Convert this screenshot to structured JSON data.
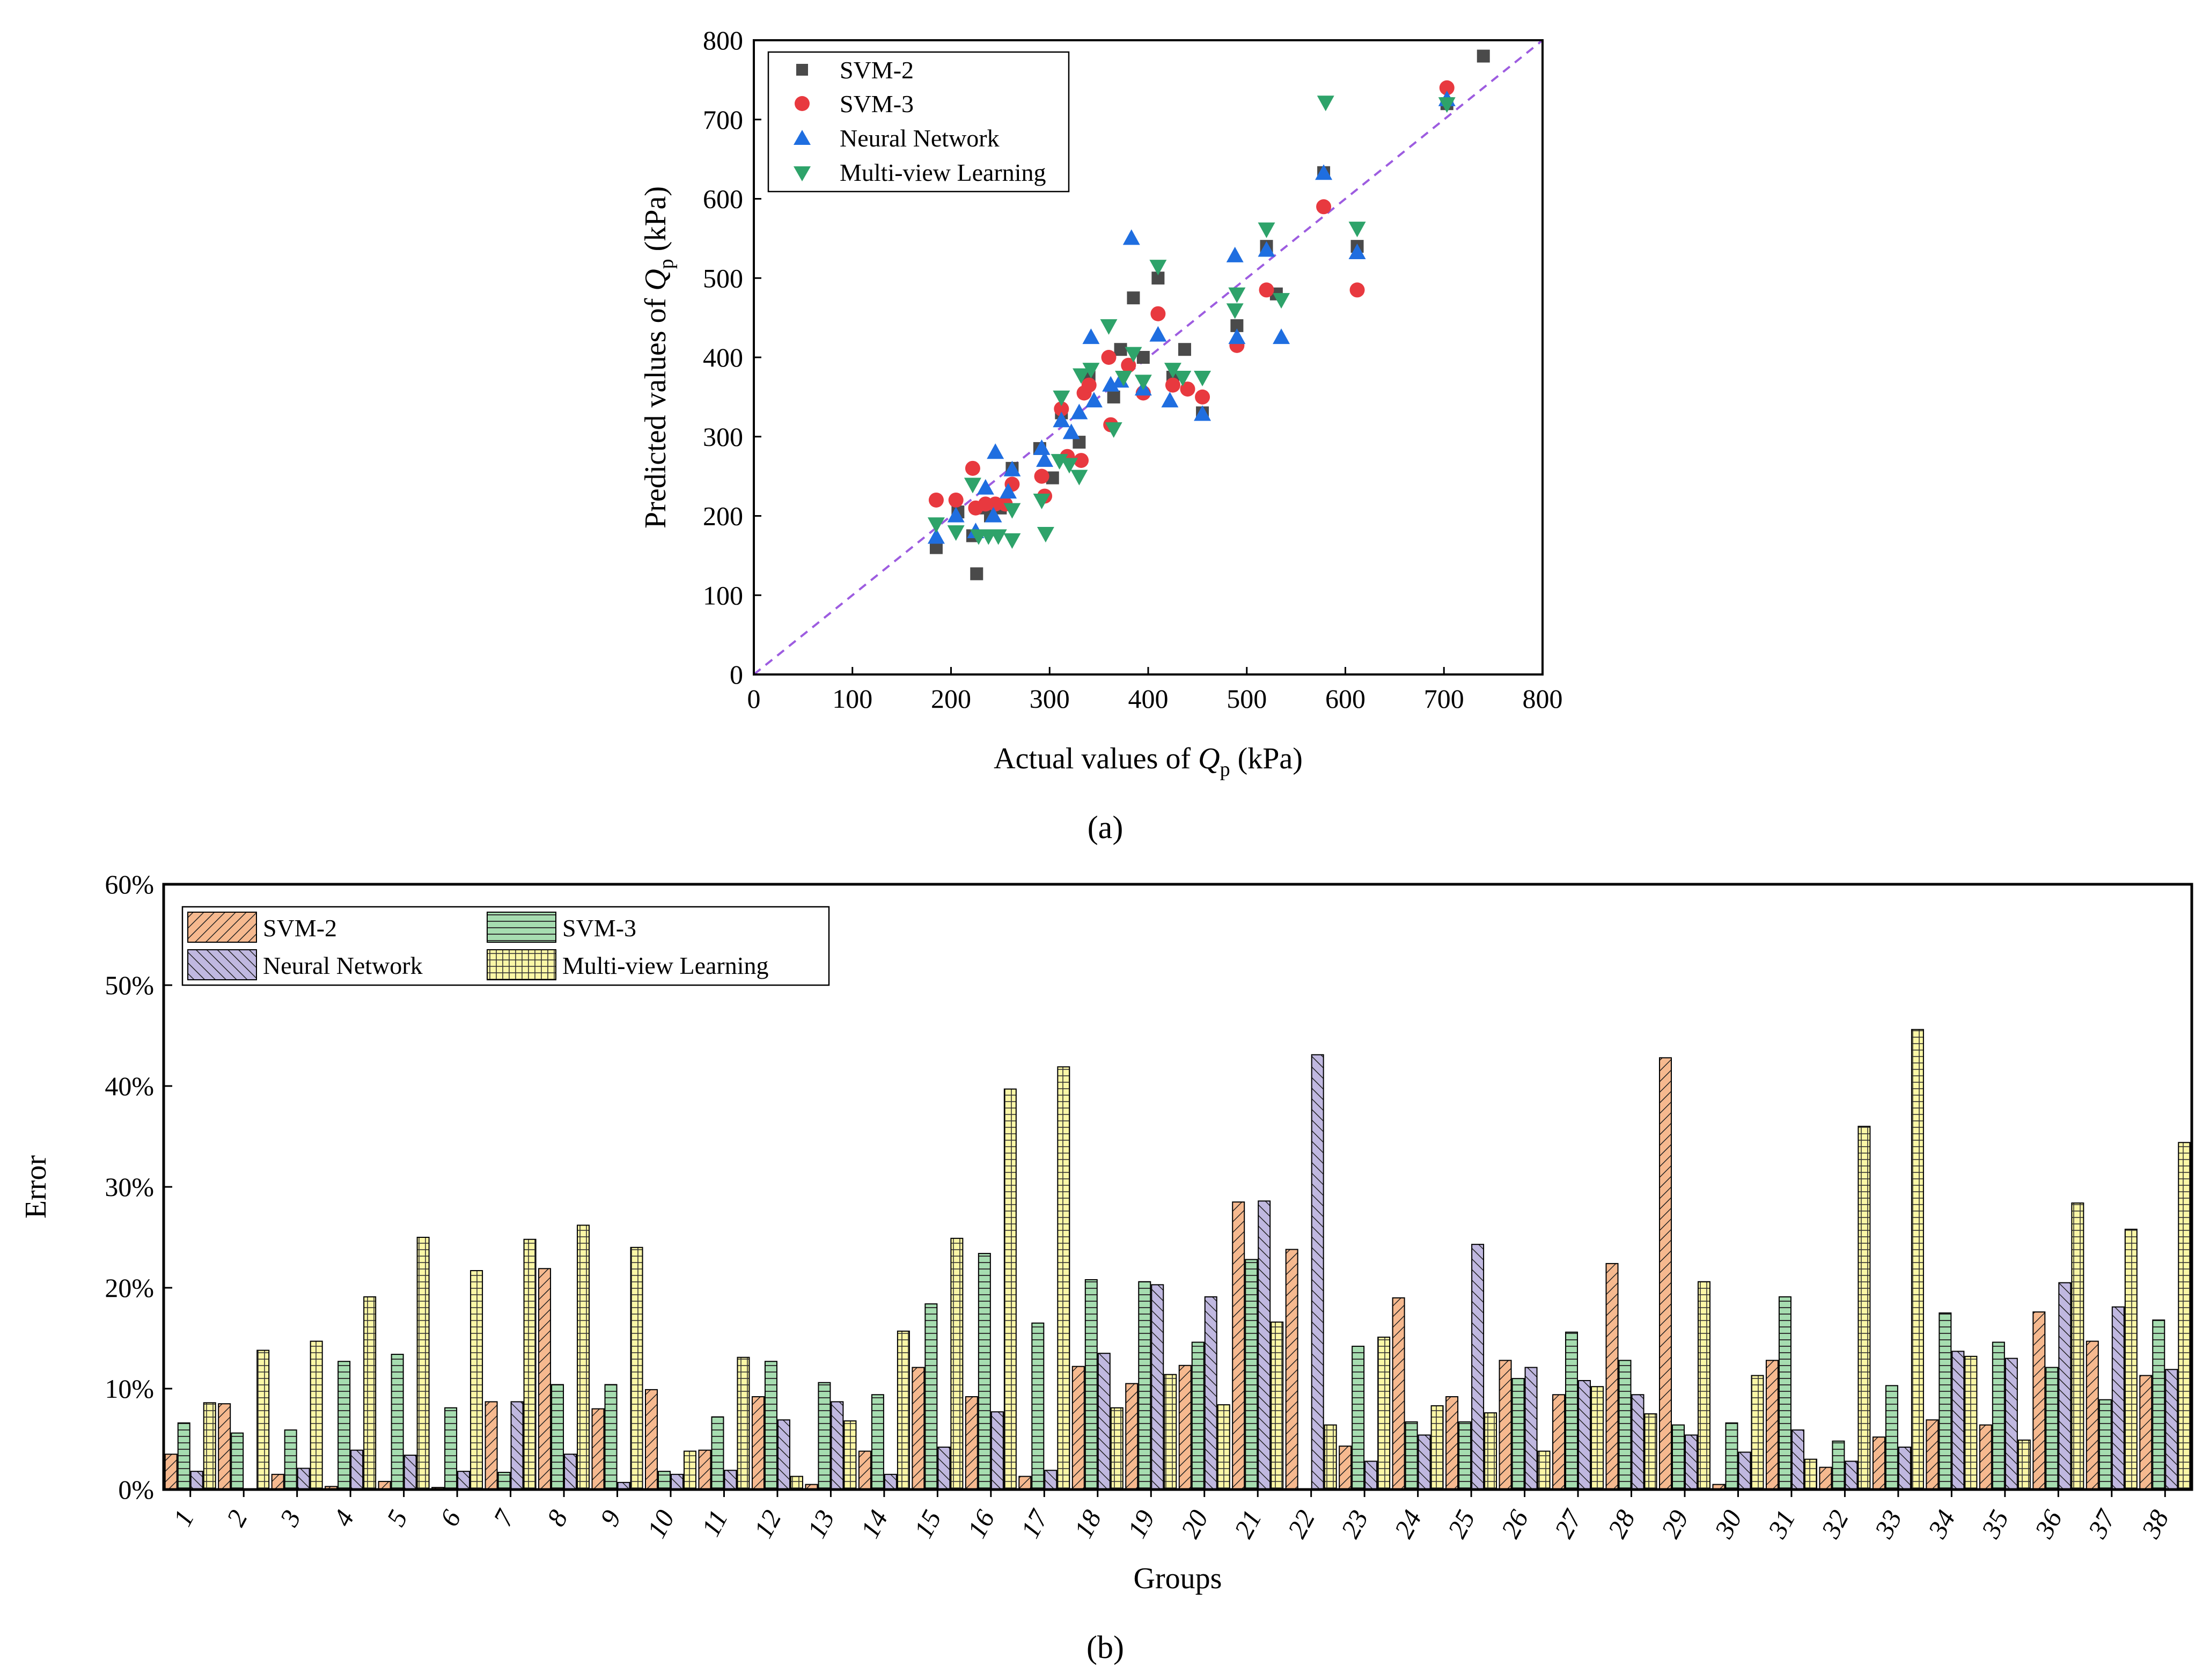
{
  "figure": {
    "panel_a_label": "(a)",
    "panel_b_label": "(b)"
  },
  "colors": {
    "svm2_marker": "#4a4a4a",
    "svm3_marker": "#e8393f",
    "nn_marker": "#1f6ee0",
    "mvl_marker": "#2ea36a",
    "diagonal": "#9d5ce0",
    "svm2_bar": "#f6b98f",
    "svm3_bar": "#a6ddb0",
    "nn_bar": "#c0b8e0",
    "mvl_bar": "#fbf7a6"
  },
  "chart_data": [
    {
      "type": "scatter",
      "title": "",
      "xlabel_prefix": "Actual values of ",
      "ylabel_prefix": "Predicted values of ",
      "variable": "Q",
      "variable_sub": "p",
      "unit": " (kPa)",
      "xlim": [
        0,
        800
      ],
      "ylim": [
        0,
        800
      ],
      "xticks": [
        0,
        100,
        200,
        300,
        400,
        500,
        600,
        700,
        800
      ],
      "yticks": [
        0,
        100,
        200,
        300,
        400,
        500,
        600,
        700,
        800
      ],
      "reference_line": "y = x",
      "legend_position": "top-left",
      "series": [
        {
          "name": "SVM-2",
          "marker": "square",
          "points": [
            [
              185,
              160
            ],
            [
              207,
              205
            ],
            [
              222,
              175
            ],
            [
              226,
              127
            ],
            [
              232,
              210
            ],
            [
              240,
              200
            ],
            [
              250,
              210
            ],
            [
              262,
              260
            ],
            [
              290,
              285
            ],
            [
              303,
              248
            ],
            [
              312,
              330
            ],
            [
              330,
              293
            ],
            [
              340,
              375
            ],
            [
              365,
              350
            ],
            [
              372,
              410
            ],
            [
              385,
              475
            ],
            [
              395,
              400
            ],
            [
              410,
              500
            ],
            [
              425,
              375
            ],
            [
              437,
              410
            ],
            [
              455,
              330
            ],
            [
              490,
              440
            ],
            [
              520,
              540
            ],
            [
              530,
              480
            ],
            [
              578,
              633
            ],
            [
              612,
              540
            ],
            [
              703,
              720
            ],
            [
              740,
              780
            ]
          ]
        },
        {
          "name": "SVM-3",
          "marker": "circle",
          "points": [
            [
              185,
              220
            ],
            [
              205,
              220
            ],
            [
              222,
              260
            ],
            [
              225,
              210
            ],
            [
              235,
              215
            ],
            [
              245,
              215
            ],
            [
              255,
              215
            ],
            [
              262,
              240
            ],
            [
              292,
              250
            ],
            [
              295,
              225
            ],
            [
              312,
              335
            ],
            [
              318,
              275
            ],
            [
              332,
              270
            ],
            [
              335,
              355
            ],
            [
              340,
              365
            ],
            [
              360,
              400
            ],
            [
              362,
              315
            ],
            [
              380,
              390
            ],
            [
              395,
              355
            ],
            [
              410,
              455
            ],
            [
              425,
              365
            ],
            [
              440,
              360
            ],
            [
              455,
              350
            ],
            [
              490,
              415
            ],
            [
              520,
              485
            ],
            [
              578,
              590
            ],
            [
              612,
              485
            ],
            [
              703,
              740
            ]
          ]
        },
        {
          "name": "Neural Network",
          "marker": "triangle-up",
          "points": [
            [
              185,
              173
            ],
            [
              205,
              200
            ],
            [
              225,
              180
            ],
            [
              235,
              235
            ],
            [
              243,
              200
            ],
            [
              245,
              280
            ],
            [
              258,
              230
            ],
            [
              262,
              258
            ],
            [
              292,
              285
            ],
            [
              295,
              270
            ],
            [
              312,
              320
            ],
            [
              322,
              305
            ],
            [
              330,
              330
            ],
            [
              342,
              425
            ],
            [
              345,
              345
            ],
            [
              362,
              365
            ],
            [
              372,
              370
            ],
            [
              383,
              550
            ],
            [
              395,
              360
            ],
            [
              410,
              428
            ],
            [
              422,
              345
            ],
            [
              455,
              328
            ],
            [
              488,
              528
            ],
            [
              490,
              425
            ],
            [
              520,
              535
            ],
            [
              535,
              425
            ],
            [
              578,
              632
            ],
            [
              612,
              532
            ],
            [
              703,
              725
            ]
          ]
        },
        {
          "name": "Multi-view Learning",
          "marker": "triangle-down",
          "points": [
            [
              185,
              190
            ],
            [
              205,
              180
            ],
            [
              222,
              240
            ],
            [
              228,
              175
            ],
            [
              238,
              175
            ],
            [
              248,
              175
            ],
            [
              262,
              170
            ],
            [
              262,
              208
            ],
            [
              292,
              220
            ],
            [
              296,
              178
            ],
            [
              310,
              270
            ],
            [
              312,
              350
            ],
            [
              320,
              265
            ],
            [
              330,
              250
            ],
            [
              332,
              378
            ],
            [
              342,
              385
            ],
            [
              360,
              440
            ],
            [
              365,
              310
            ],
            [
              375,
              375
            ],
            [
              385,
              405
            ],
            [
              395,
              370
            ],
            [
              410,
              515
            ],
            [
              425,
              385
            ],
            [
              435,
              375
            ],
            [
              455,
              375
            ],
            [
              488,
              460
            ],
            [
              490,
              480
            ],
            [
              520,
              562
            ],
            [
              535,
              473
            ],
            [
              580,
              722
            ],
            [
              612,
              563
            ],
            [
              703,
              720
            ]
          ]
        }
      ]
    },
    {
      "type": "bar",
      "title": "",
      "xlabel": "Groups",
      "ylabel": "Error",
      "ylim": [
        0,
        60
      ],
      "yticks": [
        "0%",
        "10%",
        "20%",
        "30%",
        "40%",
        "50%",
        "60%"
      ],
      "legend_position": "top-left",
      "categories": [
        "1",
        "2",
        "3",
        "4",
        "5",
        "6",
        "7",
        "8",
        "9",
        "10",
        "11",
        "12",
        "13",
        "14",
        "15",
        "16",
        "17",
        "18",
        "19",
        "20",
        "21",
        "22",
        "23",
        "24",
        "25",
        "26",
        "27",
        "28",
        "29",
        "30",
        "31",
        "32",
        "33",
        "34",
        "35",
        "36",
        "37",
        "38"
      ],
      "series": [
        {
          "name": "SVM-2",
          "pattern": "diagonal-right",
          "values": [
            3.5,
            8.5,
            1.5,
            0.3,
            0.8,
            0.2,
            8.7,
            21.9,
            8.0,
            9.9,
            3.9,
            9.2,
            0.5,
            3.8,
            12.1,
            9.2,
            1.3,
            12.2,
            10.5,
            12.3,
            28.5,
            23.8,
            4.3,
            19.0,
            9.2,
            12.8,
            9.4,
            22.4,
            42.8,
            0.5,
            12.8,
            2.2,
            5.2,
            6.9,
            6.4,
            17.6,
            14.7,
            11.3
          ]
        },
        {
          "name": "SVM-3",
          "pattern": "horizontal",
          "values": [
            6.6,
            5.6,
            5.9,
            12.7,
            13.4,
            8.1,
            1.7,
            10.4,
            10.4,
            1.8,
            7.2,
            12.7,
            10.6,
            9.4,
            18.4,
            23.4,
            16.5,
            20.8,
            20.6,
            14.6,
            22.8,
            0,
            14.2,
            6.7,
            6.7,
            11.0,
            15.6,
            12.8,
            6.4,
            6.6,
            19.1,
            4.8,
            10.3,
            17.5,
            14.6,
            12.1,
            8.9,
            16.8
          ]
        },
        {
          "name": "Neural Network",
          "pattern": "diagonal-left",
          "values": [
            1.8,
            0,
            2.1,
            3.9,
            3.4,
            1.8,
            8.7,
            3.5,
            0.7,
            1.5,
            1.9,
            6.9,
            8.7,
            1.5,
            4.2,
            7.7,
            1.9,
            13.5,
            20.3,
            19.1,
            28.6,
            43.1,
            2.8,
            5.4,
            24.3,
            12.1,
            10.8,
            9.4,
            5.4,
            3.7,
            5.9,
            2.8,
            4.2,
            13.7,
            13.0,
            20.5,
            18.1,
            11.9
          ]
        },
        {
          "name": "Multi-view Learning",
          "pattern": "grid",
          "values": [
            8.6,
            13.8,
            14.7,
            19.1,
            25.0,
            21.7,
            24.8,
            26.2,
            24.0,
            3.8,
            13.1,
            1.3,
            6.8,
            15.7,
            24.9,
            39.7,
            41.9,
            8.1,
            11.4,
            8.4,
            16.6,
            6.4,
            15.1,
            8.3,
            7.6,
            3.8,
            10.2,
            7.5,
            20.6,
            11.3,
            3.0,
            36.0,
            45.6,
            13.2,
            4.9,
            28.4,
            25.8,
            34.4
          ]
        }
      ]
    }
  ]
}
